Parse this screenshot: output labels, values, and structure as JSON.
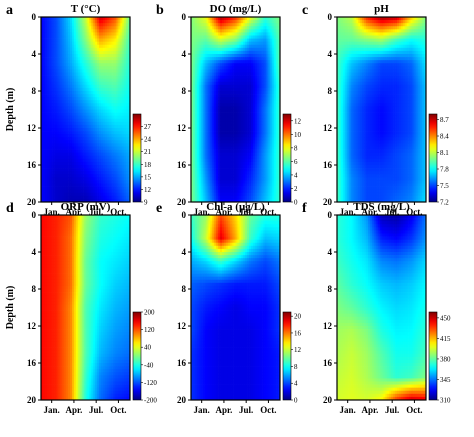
{
  "chart_data": [
    {
      "type": "heatmap",
      "label": "a",
      "title": "T (°C)",
      "ylabel": "Depth (m)",
      "xticks": [
        "Jan.",
        "Apr.",
        "Jul.",
        "Oct."
      ],
      "yticks": [
        "0",
        "4",
        "8",
        "12",
        "16",
        "20"
      ],
      "ylim": [
        0,
        20
      ],
      "colorbar": {
        "range": [
          9,
          30
        ],
        "ticks": [
          "9",
          "12",
          "15",
          "18",
          "21",
          "24",
          "27"
        ]
      },
      "grid": [
        [
          11.5,
          13,
          16,
          21,
          28.5,
          26,
          19
        ],
        [
          11.5,
          13,
          15.5,
          19.5,
          24,
          22.5,
          18
        ],
        [
          11.5,
          13,
          15,
          17.5,
          20,
          20,
          17.5
        ],
        [
          11.5,
          12.5,
          14,
          16,
          18,
          18.5,
          17
        ],
        [
          11.5,
          12,
          13,
          14.5,
          16,
          17,
          16.5
        ],
        [
          11.5,
          11.5,
          12,
          13,
          14.5,
          15.5,
          16
        ],
        [
          11.5,
          11,
          11,
          12,
          13,
          14,
          15
        ],
        [
          11.5,
          10.5,
          10.5,
          11,
          12,
          13,
          14.5
        ],
        [
          11.5,
          10.5,
          10,
          10,
          11,
          12,
          13.5
        ]
      ]
    },
    {
      "type": "heatmap",
      "label": "b",
      "title": "DO (mg/L)",
      "ylabel": "",
      "xticks": [
        "Jan.",
        "Apr.",
        "Jul.",
        "Oct."
      ],
      "yticks": [
        "0",
        "4",
        "8",
        "12",
        "16",
        "20"
      ],
      "ylim": [
        0,
        20
      ],
      "colorbar": {
        "range": [
          0,
          13
        ],
        "ticks": [
          "0",
          "2",
          "4",
          "6",
          "8",
          "10",
          "12"
        ]
      },
      "grid": [
        [
          6.5,
          8,
          12.5,
          11,
          8,
          5.5,
          6.5
        ],
        [
          6.5,
          6,
          7.5,
          6.5,
          4,
          3.5,
          6
        ],
        [
          6.5,
          4,
          2.5,
          1.5,
          1.5,
          2.5,
          6
        ],
        [
          6.5,
          3,
          1,
          1,
          1,
          2.5,
          5.5
        ],
        [
          6.5,
          3,
          0.5,
          0.5,
          1,
          3,
          5.5
        ],
        [
          6.5,
          3,
          0.5,
          0.5,
          1,
          3,
          5.5
        ],
        [
          6.5,
          3,
          1,
          1,
          1.5,
          3.5,
          5.5
        ],
        [
          6.5,
          3.5,
          1,
          1,
          2,
          3.5,
          5.5
        ],
        [
          6.5,
          4,
          1.5,
          1.5,
          2.5,
          4,
          5.5
        ]
      ]
    },
    {
      "type": "heatmap",
      "label": "c",
      "title": "pH",
      "ylabel": "",
      "xticks": [
        "Jan.",
        "Apr.",
        "Jul.",
        "Oct."
      ],
      "yticks": [
        "0",
        "4",
        "8",
        "12",
        "16",
        "20"
      ],
      "ylim": [
        0,
        20
      ],
      "colorbar": {
        "range": [
          7.2,
          8.8
        ],
        "ticks": [
          "7.2",
          "7.5",
          "7.8",
          "8.1",
          "8.4",
          "8.7"
        ]
      },
      "grid": [
        [
          8.0,
          8.1,
          8.55,
          8.75,
          8.7,
          8.3,
          8.0
        ],
        [
          7.95,
          7.95,
          8.0,
          8.05,
          7.9,
          7.8,
          7.85
        ],
        [
          7.9,
          7.7,
          7.6,
          7.5,
          7.5,
          7.55,
          7.75
        ],
        [
          7.9,
          7.6,
          7.5,
          7.45,
          7.45,
          7.5,
          7.7
        ],
        [
          7.9,
          7.55,
          7.45,
          7.4,
          7.45,
          7.5,
          7.7
        ],
        [
          7.9,
          7.55,
          7.45,
          7.4,
          7.45,
          7.5,
          7.7
        ],
        [
          7.9,
          7.55,
          7.45,
          7.45,
          7.5,
          7.55,
          7.7
        ],
        [
          7.9,
          7.6,
          7.5,
          7.5,
          7.5,
          7.55,
          7.7
        ],
        [
          7.9,
          7.6,
          7.5,
          7.5,
          7.55,
          7.6,
          7.75
        ]
      ]
    },
    {
      "type": "heatmap",
      "label": "d",
      "title": "ORP (mV)",
      "ylabel": "Depth (m)",
      "xticks": [
        "Jan.",
        "Apr.",
        "Jul.",
        "Oct."
      ],
      "yticks": [
        "0",
        "4",
        "8",
        "12",
        "16",
        "20"
      ],
      "ylim": [
        0,
        20
      ],
      "colorbar": {
        "range": [
          -200,
          200
        ],
        "ticks": [
          "-200",
          "-120",
          "-40",
          "40",
          "120",
          "200"
        ]
      },
      "grid": [
        [
          150,
          140,
          120,
          10,
          -30,
          -40,
          -50
        ],
        [
          150,
          140,
          110,
          0,
          -40,
          -50,
          -60
        ],
        [
          150,
          140,
          110,
          -10,
          -50,
          -60,
          -70
        ],
        [
          150,
          140,
          110,
          -10,
          -50,
          -70,
          -80
        ],
        [
          150,
          140,
          100,
          -20,
          -60,
          -80,
          -90
        ],
        [
          150,
          140,
          100,
          -20,
          -70,
          -90,
          -100
        ],
        [
          150,
          140,
          100,
          -20,
          -80,
          -100,
          -110
        ],
        [
          150,
          140,
          100,
          -30,
          -100,
          -120,
          -130
        ],
        [
          150,
          140,
          100,
          -40,
          -110,
          -140,
          -150
        ]
      ]
    },
    {
      "type": "heatmap",
      "label": "e",
      "title": "Chl-a (μg/L)",
      "ylabel": "",
      "xticks": [
        "Jan.",
        "Apr.",
        "Jul.",
        "Oct."
      ],
      "yticks": [
        "0",
        "4",
        "8",
        "12",
        "16",
        "20"
      ],
      "ylim": [
        0,
        20
      ],
      "colorbar": {
        "range": [
          0,
          21
        ],
        "ticks": [
          "0",
          "4",
          "8",
          "12",
          "16",
          "20"
        ]
      },
      "grid": [
        [
          9,
          11,
          17,
          14,
          10,
          8.5,
          8.5
        ],
        [
          8,
          12,
          19,
          15,
          9,
          6.5,
          7
        ],
        [
          6,
          7,
          9,
          7,
          5,
          4,
          5
        ],
        [
          4.5,
          4,
          3.5,
          3,
          3,
          3,
          4
        ],
        [
          4,
          3,
          2.5,
          2,
          2.5,
          2.5,
          3.5
        ],
        [
          4,
          2.5,
          2,
          2,
          2,
          2.5,
          3.5
        ],
        [
          3.5,
          2.5,
          2,
          2,
          2,
          2.5,
          3
        ],
        [
          3.5,
          2.5,
          2,
          2,
          2,
          2.5,
          3
        ],
        [
          3.5,
          2.5,
          2,
          2,
          2,
          2.5,
          3
        ]
      ]
    },
    {
      "type": "heatmap",
      "label": "f",
      "title": "TDS (mg/L)",
      "ylabel": "",
      "xticks": [
        "Jan.",
        "Apr.",
        "Jul.",
        "Oct."
      ],
      "yticks": [
        "0",
        "4",
        "8",
        "12",
        "16",
        "20"
      ],
      "ylim": [
        0,
        20
      ],
      "colorbar": {
        "range": [
          310,
          460
        ],
        "ticks": [
          "310",
          "345",
          "380",
          "415",
          "450"
        ]
      },
      "grid": [
        [
          372,
          365,
          350,
          318,
          315,
          325,
          345
        ],
        [
          372,
          365,
          355,
          332,
          328,
          335,
          350
        ],
        [
          375,
          368,
          362,
          348,
          345,
          350,
          360
        ],
        [
          380,
          372,
          366,
          358,
          355,
          358,
          365
        ],
        [
          385,
          380,
          372,
          364,
          360,
          362,
          368
        ],
        [
          390,
          392,
          385,
          370,
          364,
          365,
          372
        ],
        [
          392,
          396,
          390,
          378,
          368,
          368,
          376
        ],
        [
          395,
          398,
          392,
          382,
          372,
          375,
          385
        ],
        [
          398,
          400,
          398,
          405,
          435,
          450,
          445
        ]
      ]
    }
  ]
}
